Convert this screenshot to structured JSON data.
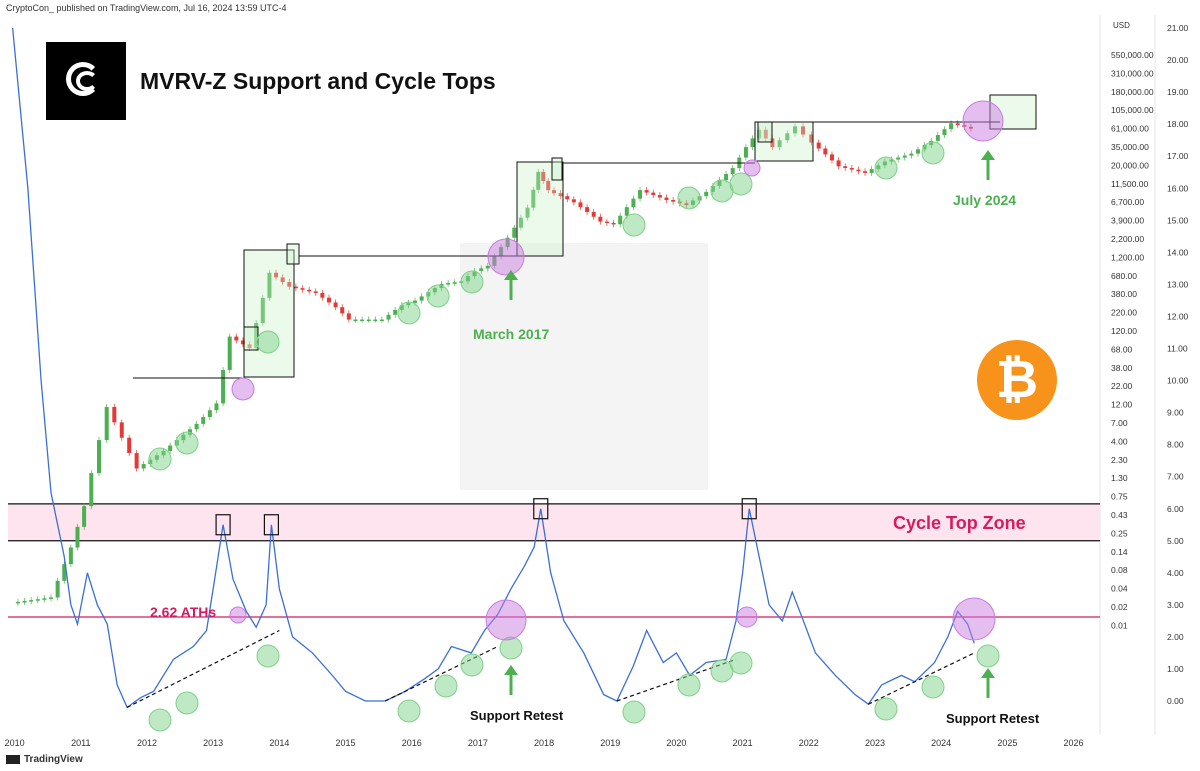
{
  "header": {
    "text": "CryptoCon_ published on TradingView.com, Jul 16, 2024 13:59 UTC-4"
  },
  "footer": {
    "text": "TradingView"
  },
  "title": "MVRV-Z Support and Cycle Tops",
  "bitcoin_symbol": "₿",
  "annotations": {
    "march_2017": "March 2017",
    "july_2024": "July 2024",
    "cycle_top_zone": "Cycle Top Zone",
    "aths_262": "2.62 ATHs",
    "support_retest_1": "Support Retest",
    "support_retest_2": "Support Retest"
  },
  "colors": {
    "green": "#4caf50",
    "pink": "#d81b60",
    "blue_line": "#3b6fd8",
    "bitcoin_orange": "#f7931a",
    "purple_circle": "#c77ddf",
    "green_circle": "#7fd18a"
  },
  "chart_data": {
    "type": "line",
    "x_axis": {
      "labels": [
        "2010",
        "2011",
        "2012",
        "2013",
        "2014",
        "2015",
        "2016",
        "2017",
        "2018",
        "2019",
        "2020",
        "2021",
        "2022",
        "2023",
        "2024",
        "2025",
        "2026"
      ]
    },
    "price_axis": {
      "title": "USD",
      "labels": [
        "550,000.00",
        "310,000.00",
        "180,000.00",
        "105,000.00",
        "61,000.00",
        "35,000.00",
        "20,000.00",
        "11,500.00",
        "6,700.00",
        "3,900.00",
        "2,200.00",
        "1,200.00",
        "680.00",
        "380.00",
        "220.00",
        "120.00",
        "68.00",
        "38.00",
        "22.00",
        "12.00",
        "7.00",
        "4.00",
        "2.30",
        "1.30",
        "0.75",
        "0.43",
        "0.25",
        "0.14",
        "0.08",
        "0.04",
        "0.02",
        "0.01"
      ]
    },
    "mvrv_axis": {
      "labels": [
        "21.00",
        "20.00",
        "19.00",
        "18.00",
        "17.00",
        "16.00",
        "15.00",
        "14.00",
        "13.00",
        "12.00",
        "11.00",
        "10.00",
        "9.00",
        "8.00",
        "7.00",
        "6.00",
        "5.00",
        "4.00",
        "3.00",
        "2.00",
        "1.00",
        "0.00"
      ]
    },
    "price_series": {
      "name": "BTC price",
      "scale": "log",
      "points": [
        [
          2010.0,
          0.06
        ],
        [
          2010.6,
          0.07
        ],
        [
          2010.9,
          0.3
        ],
        [
          2011.1,
          1.0
        ],
        [
          2011.45,
          18
        ],
        [
          2011.9,
          3
        ],
        [
          2012.3,
          5
        ],
        [
          2012.8,
          11
        ],
        [
          2013.1,
          20
        ],
        [
          2013.3,
          140
        ],
        [
          2013.6,
          100
        ],
        [
          2013.9,
          900
        ],
        [
          2014.2,
          600
        ],
        [
          2014.6,
          500
        ],
        [
          2014.9,
          330
        ],
        [
          2015.1,
          230
        ],
        [
          2015.6,
          230
        ],
        [
          2015.9,
          350
        ],
        [
          2016.1,
          400
        ],
        [
          2016.5,
          650
        ],
        [
          2016.8,
          700
        ],
        [
          2017.0,
          950
        ],
        [
          2017.2,
          1100
        ],
        [
          2017.5,
          2500
        ],
        [
          2017.8,
          6000
        ],
        [
          2017.95,
          17000
        ],
        [
          2018.1,
          10000
        ],
        [
          2018.5,
          7000
        ],
        [
          2018.9,
          4000
        ],
        [
          2019.1,
          3700
        ],
        [
          2019.5,
          10000
        ],
        [
          2019.9,
          7500
        ],
        [
          2020.2,
          6500
        ],
        [
          2020.5,
          9500
        ],
        [
          2020.9,
          19000
        ],
        [
          2021.1,
          35000
        ],
        [
          2021.3,
          58000
        ],
        [
          2021.5,
          35000
        ],
        [
          2021.85,
          64000
        ],
        [
          2022.1,
          40000
        ],
        [
          2022.5,
          20000
        ],
        [
          2022.9,
          16500
        ],
        [
          2023.2,
          23000
        ],
        [
          2023.6,
          29000
        ],
        [
          2023.9,
          42000
        ],
        [
          2024.2,
          70000
        ],
        [
          2024.5,
          60000
        ]
      ]
    },
    "mvrv_series": {
      "name": "MVRV-Z",
      "points": [
        [
          2009.97,
          21.0
        ],
        [
          2010.2,
          16.0
        ],
        [
          2010.4,
          10.0
        ],
        [
          2010.55,
          6.5
        ],
        [
          2010.75,
          4.5
        ],
        [
          2010.85,
          3.0
        ],
        [
          2010.95,
          2.4
        ],
        [
          2011.1,
          4.0
        ],
        [
          2011.25,
          3.0
        ],
        [
          2011.4,
          2.4
        ],
        [
          2011.55,
          0.5
        ],
        [
          2011.7,
          -0.2
        ],
        [
          2011.9,
          0.1
        ],
        [
          2012.1,
          0.3
        ],
        [
          2012.4,
          1.3
        ],
        [
          2012.7,
          1.7
        ],
        [
          2012.9,
          2.2
        ],
        [
          2013.0,
          3.5
        ],
        [
          2013.15,
          5.5
        ],
        [
          2013.3,
          3.8
        ],
        [
          2013.5,
          2.8
        ],
        [
          2013.65,
          2.3
        ],
        [
          2013.8,
          3.0
        ],
        [
          2013.88,
          5.5
        ],
        [
          2014.0,
          3.5
        ],
        [
          2014.2,
          2.0
        ],
        [
          2014.5,
          1.5
        ],
        [
          2014.8,
          0.8
        ],
        [
          2015.0,
          0.3
        ],
        [
          2015.3,
          0.0
        ],
        [
          2015.6,
          0.0
        ],
        [
          2015.9,
          0.3
        ],
        [
          2016.2,
          0.7
        ],
        [
          2016.4,
          1.0
        ],
        [
          2016.6,
          1.7
        ],
        [
          2016.9,
          1.5
        ],
        [
          2017.1,
          2.2
        ],
        [
          2017.3,
          2.7
        ],
        [
          2017.5,
          3.5
        ],
        [
          2017.7,
          4.2
        ],
        [
          2017.85,
          4.8
        ],
        [
          2017.95,
          6.0
        ],
        [
          2018.1,
          4.0
        ],
        [
          2018.3,
          2.5
        ],
        [
          2018.6,
          1.5
        ],
        [
          2018.9,
          0.2
        ],
        [
          2019.1,
          0.0
        ],
        [
          2019.35,
          1.1
        ],
        [
          2019.55,
          2.2
        ],
        [
          2019.8,
          1.2
        ],
        [
          2020.0,
          1.5
        ],
        [
          2020.2,
          0.8
        ],
        [
          2020.45,
          1.2
        ],
        [
          2020.75,
          1.3
        ],
        [
          2020.9,
          2.5
        ],
        [
          2021.0,
          4.0
        ],
        [
          2021.1,
          6.0
        ],
        [
          2021.25,
          4.5
        ],
        [
          2021.4,
          3.0
        ],
        [
          2021.6,
          2.5
        ],
        [
          2021.75,
          3.4
        ],
        [
          2021.9,
          2.6
        ],
        [
          2022.1,
          1.5
        ],
        [
          2022.4,
          0.8
        ],
        [
          2022.7,
          0.2
        ],
        [
          2022.9,
          -0.1
        ],
        [
          2023.1,
          0.5
        ],
        [
          2023.4,
          0.8
        ],
        [
          2023.6,
          0.6
        ],
        [
          2023.9,
          1.2
        ],
        [
          2024.1,
          2.0
        ],
        [
          2024.25,
          2.8
        ],
        [
          2024.4,
          2.4
        ],
        [
          2024.5,
          1.8
        ]
      ]
    },
    "cycle_top_zone": [
      5.0,
      6.15
    ],
    "ath_line_value": 2.62,
    "mvrv_ylim": [
      -0.5,
      21.0
    ],
    "price_ylim_log10": [
      -2.2,
      5.9
    ],
    "xlim": [
      2009.9,
      2026.4
    ]
  }
}
